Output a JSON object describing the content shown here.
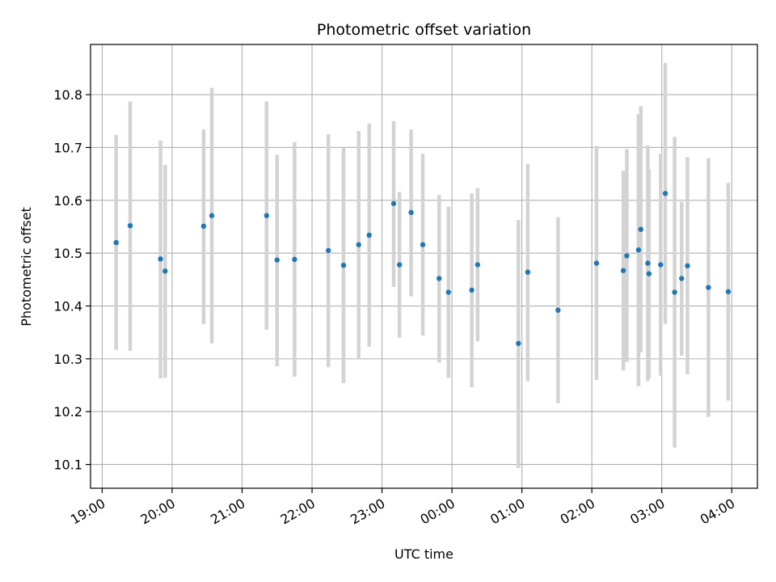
{
  "chart_data": {
    "type": "scatter",
    "title": "Photometric offset variation",
    "xlabel": "UTC time",
    "ylabel": "Photometric offset",
    "x_unit": "UTC time (HH:MM, starting 19:00 day 1)",
    "xlim": [
      "18:50",
      "04:22"
    ],
    "ylim": [
      10.055,
      10.895
    ],
    "x_ticks": [
      "19:00",
      "20:00",
      "21:00",
      "22:00",
      "23:00",
      "00:00",
      "01:00",
      "02:00",
      "03:00",
      "04:00"
    ],
    "y_ticks": [
      "10.1",
      "10.2",
      "10.3",
      "10.4",
      "10.5",
      "10.6",
      "10.7",
      "10.8"
    ],
    "grid": true,
    "colors": {
      "points": "#1f77b4",
      "error_bars": "#d3d3d3",
      "grid": "#b0b0b0"
    },
    "points": [
      {
        "time": "19:12",
        "y": 10.52,
        "lo": 10.317,
        "hi": 10.724
      },
      {
        "time": "19:24",
        "y": 10.552,
        "lo": 10.315,
        "hi": 10.787
      },
      {
        "time": "19:50",
        "y": 10.489,
        "lo": 10.263,
        "hi": 10.713
      },
      {
        "time": "19:54",
        "y": 10.466,
        "lo": 10.264,
        "hi": 10.667
      },
      {
        "time": "20:27",
        "y": 10.551,
        "lo": 10.366,
        "hi": 10.734
      },
      {
        "time": "20:34",
        "y": 10.571,
        "lo": 10.329,
        "hi": 10.813
      },
      {
        "time": "21:21",
        "y": 10.571,
        "lo": 10.355,
        "hi": 10.787
      },
      {
        "time": "21:30",
        "y": 10.487,
        "lo": 10.286,
        "hi": 10.686
      },
      {
        "time": "21:45",
        "y": 10.488,
        "lo": 10.266,
        "hi": 10.71
      },
      {
        "time": "22:14",
        "y": 10.505,
        "lo": 10.284,
        "hi": 10.725
      },
      {
        "time": "22:27",
        "y": 10.477,
        "lo": 10.254,
        "hi": 10.7
      },
      {
        "time": "22:40",
        "y": 10.516,
        "lo": 10.3,
        "hi": 10.731
      },
      {
        "time": "22:49",
        "y": 10.534,
        "lo": 10.323,
        "hi": 10.745
      },
      {
        "time": "23:10",
        "y": 10.594,
        "lo": 10.436,
        "hi": 10.75
      },
      {
        "time": "23:15",
        "y": 10.478,
        "lo": 10.34,
        "hi": 10.616
      },
      {
        "time": "23:25",
        "y": 10.577,
        "lo": 10.418,
        "hi": 10.734
      },
      {
        "time": "23:35",
        "y": 10.516,
        "lo": 10.344,
        "hi": 10.688
      },
      {
        "time": "23:49",
        "y": 10.452,
        "lo": 10.293,
        "hi": 10.61
      },
      {
        "time": "23:57",
        "y": 10.426,
        "lo": 10.264,
        "hi": 10.588
      },
      {
        "time": "00:17",
        "y": 10.43,
        "lo": 10.246,
        "hi": 10.613
      },
      {
        "time": "00:22",
        "y": 10.478,
        "lo": 10.333,
        "hi": 10.623
      },
      {
        "time": "00:57",
        "y": 10.329,
        "lo": 10.093,
        "hi": 10.563
      },
      {
        "time": "01:05",
        "y": 10.464,
        "lo": 10.258,
        "hi": 10.669
      },
      {
        "time": "01:31",
        "y": 10.392,
        "lo": 10.216,
        "hi": 10.568
      },
      {
        "time": "02:04",
        "y": 10.481,
        "lo": 10.26,
        "hi": 10.703
      },
      {
        "time": "02:27",
        "y": 10.467,
        "lo": 10.278,
        "hi": 10.656
      },
      {
        "time": "02:30",
        "y": 10.495,
        "lo": 10.294,
        "hi": 10.697
      },
      {
        "time": "02:40",
        "y": 10.506,
        "lo": 10.248,
        "hi": 10.763
      },
      {
        "time": "02:42",
        "y": 10.545,
        "lo": 10.312,
        "hi": 10.778
      },
      {
        "time": "02:48",
        "y": 10.481,
        "lo": 10.258,
        "hi": 10.704
      },
      {
        "time": "02:49",
        "y": 10.461,
        "lo": 10.264,
        "hi": 10.658
      },
      {
        "time": "02:59",
        "y": 10.478,
        "lo": 10.268,
        "hi": 10.688
      },
      {
        "time": "03:03",
        "y": 10.613,
        "lo": 10.366,
        "hi": 10.86
      },
      {
        "time": "03:11",
        "y": 10.426,
        "lo": 10.132,
        "hi": 10.72
      },
      {
        "time": "03:17",
        "y": 10.452,
        "lo": 10.306,
        "hi": 10.597
      },
      {
        "time": "03:22",
        "y": 10.476,
        "lo": 10.271,
        "hi": 10.682
      },
      {
        "time": "03:40",
        "y": 10.435,
        "lo": 10.19,
        "hi": 10.68
      },
      {
        "time": "03:57",
        "y": 10.427,
        "lo": 10.221,
        "hi": 10.633
      }
    ]
  }
}
